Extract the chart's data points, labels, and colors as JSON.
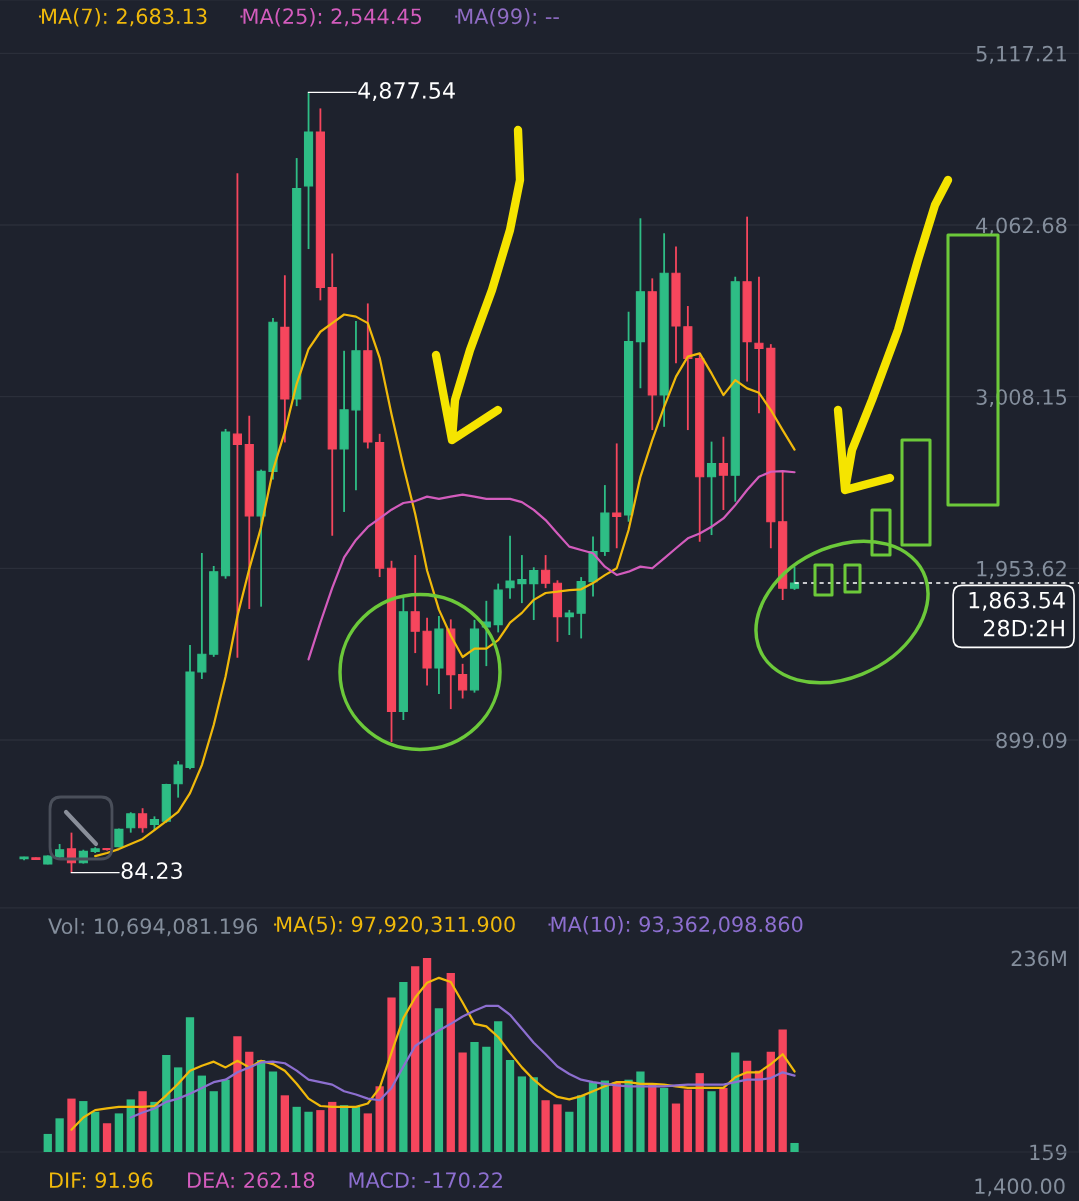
{
  "chart_data": [
    {
      "type": "candlestick",
      "categories": [
        null,
        null,
        null,
        null,
        null,
        null,
        null,
        null,
        null,
        null,
        null,
        null,
        null,
        null,
        null,
        null,
        null,
        null,
        null,
        null,
        null,
        null,
        null,
        null,
        null,
        null,
        null,
        null,
        null,
        null,
        null,
        null,
        null,
        null,
        null,
        null,
        null,
        null,
        null,
        null,
        null,
        null,
        null,
        null,
        null,
        null,
        null,
        null,
        null,
        null,
        null,
        null,
        null,
        null,
        null,
        null,
        null,
        null,
        null,
        null,
        null,
        null,
        null,
        null,
        null,
        null
      ],
      "ohlc": [
        [
          170,
          182,
          160,
          180
        ],
        [
          175,
          177,
          163,
          165
        ],
        [
          137,
          190,
          135,
          186
        ],
        [
          180,
          260,
          170,
          225
        ],
        [
          230,
          330,
          84.23,
          145
        ],
        [
          145,
          225,
          140,
          215
        ],
        [
          215,
          240,
          205,
          230
        ],
        [
          232,
          236,
          220,
          226
        ],
        [
          244,
          355,
          240,
          350
        ],
        [
          360,
          455,
          330,
          445
        ],
        [
          445,
          480,
          330,
          360
        ],
        [
          380,
          430,
          345,
          410
        ],
        [
          400,
          630,
          390,
          625
        ],
        [
          630,
          770,
          545,
          745
        ],
        [
          730,
          1483,
          720,
          1317
        ],
        [
          1317,
          2048,
          1274,
          1426
        ],
        [
          1426,
          1968,
          1410,
          1933
        ],
        [
          1908,
          2810,
          1890,
          2791
        ],
        [
          2778,
          4381,
          1404,
          2714
        ],
        [
          2714,
          2891,
          1704,
          2276
        ],
        [
          2276,
          2560,
          1718,
          2549
        ],
        [
          2549,
          3491,
          2500,
          3465
        ],
        [
          3434,
          3754,
          2727,
          2994
        ],
        [
          2994,
          4474,
          2950,
          4286
        ],
        [
          4303,
          4877.54,
          3915,
          4634
        ],
        [
          4634,
          4779,
          3600,
          3679
        ],
        [
          3679,
          3887,
          2154,
          2687
        ],
        [
          2687,
          3290,
          2300,
          2927
        ],
        [
          2927,
          3473,
          2434,
          3290
        ],
        [
          3290,
          3581,
          2690,
          2730
        ],
        [
          2727,
          2780,
          1900,
          1954
        ],
        [
          1954,
          2000,
          887,
          1074
        ],
        [
          1074,
          1780,
          1022,
          1687
        ],
        [
          1687,
          2035,
          1433,
          1567
        ],
        [
          1567,
          1650,
          1234,
          1341
        ],
        [
          1341,
          1661,
          1182,
          1580
        ],
        [
          1580,
          1640,
          1089,
          1301
        ],
        [
          1301,
          1367,
          1154,
          1207
        ],
        [
          1207,
          1637,
          1190,
          1580
        ],
        [
          1593,
          1754,
          1353,
          1624
        ],
        [
          1608,
          1860,
          1560,
          1820
        ],
        [
          1834,
          2154,
          1767,
          1876
        ],
        [
          1860,
          2035,
          1740,
          1885
        ],
        [
          1860,
          1960,
          1636,
          1940
        ],
        [
          1942,
          2035,
          1832,
          1862
        ],
        [
          1862,
          1880,
          1502,
          1657
        ],
        [
          1657,
          1698,
          1544,
          1679
        ],
        [
          1678,
          1900,
          1523,
          1872
        ],
        [
          1872,
          2149,
          1780,
          2057
        ],
        [
          2057,
          2465,
          2030,
          2293
        ],
        [
          2293,
          2721,
          2077,
          2272
        ],
        [
          2281,
          3530,
          2240,
          3346
        ],
        [
          3346,
          4104,
          3060,
          3653
        ],
        [
          3653,
          3735,
          2803,
          3019
        ],
        [
          3019,
          4012,
          2823,
          3766
        ],
        [
          3766,
          3930,
          3213,
          3442
        ],
        [
          3438,
          3565,
          2803,
          3243
        ],
        [
          3243,
          3274,
          2117,
          2516
        ],
        [
          2516,
          2732,
          2158,
          2598
        ],
        [
          2598,
          2762,
          2312,
          2526
        ],
        [
          2526,
          3745,
          2363,
          3714
        ],
        [
          3714,
          4114,
          3101,
          3346
        ],
        [
          3336,
          3745,
          2906,
          3305
        ],
        [
          3305,
          3331,
          2077,
          2240
        ],
        [
          2240,
          2547,
          1759,
          1831
        ],
        [
          1831,
          1964,
          1821,
          1863.54
        ]
      ],
      "colors": [
        "#2ebd85",
        "#f6465d",
        "#2ebd85",
        "#2ebd85",
        "#f6465d",
        "#2ebd85",
        "#2ebd85",
        "#f6465d",
        "#2ebd85",
        "#2ebd85",
        "#f6465d",
        "#2ebd85",
        "#2ebd85",
        "#2ebd85",
        "#2ebd85",
        "#2ebd85",
        "#2ebd85",
        "#2ebd85",
        "#f6465d",
        "#f6465d",
        "#2ebd85",
        "#2ebd85",
        "#f6465d",
        "#2ebd85",
        "#2ebd85",
        "#f6465d",
        "#f6465d",
        "#2ebd85",
        "#2ebd85",
        "#f6465d",
        "#f6465d",
        "#f6465d",
        "#2ebd85",
        "#f6465d",
        "#f6465d",
        "#2ebd85",
        "#f6465d",
        "#f6465d",
        "#2ebd85",
        "#2ebd85",
        "#2ebd85",
        "#2ebd85",
        "#2ebd85",
        "#2ebd85",
        "#f6465d",
        "#f6465d",
        "#2ebd85",
        "#2ebd85",
        "#2ebd85",
        "#2ebd85",
        "#f6465d",
        "#2ebd85",
        "#2ebd85",
        "#f6465d",
        "#2ebd85",
        "#f6465d",
        "#f6465d",
        "#f6465d",
        "#2ebd85",
        "#f6465d",
        "#2ebd85",
        "#f6465d",
        "#f6465d",
        "#f6465d",
        "#f6465d",
        "#2ebd85"
      ],
      "series": [
        {
          "name": "MA(7): 2,683.13",
          "type": "line",
          "color": "#f0b90b",
          "values": [
            null,
            null,
            null,
            null,
            null,
            null,
            186,
            205,
            229,
            260,
            291,
            346,
            401,
            457,
            573,
            745,
            991,
            1289,
            1661,
            1950,
            2207,
            2556,
            2793,
            3087,
            3301,
            3407,
            3460,
            3513,
            3500,
            3460,
            3247,
            2900,
            2582,
            2287,
            1940,
            1700,
            1540,
            1409,
            1460,
            1460,
            1513,
            1620,
            1680,
            1760,
            1802,
            1810,
            1820,
            1825,
            1863,
            1912,
            1954,
            2189,
            2516,
            2741,
            2946,
            3131,
            3254,
            3274,
            3151,
            3018,
            3110,
            3059,
            3032,
            2926,
            2803,
            2683
          ]
        },
        {
          "name": "MA(25): 2,544.45",
          "type": "line",
          "color": "#d35cbd",
          "values": [
            null,
            null,
            null,
            null,
            null,
            null,
            null,
            null,
            null,
            null,
            null,
            null,
            null,
            null,
            null,
            null,
            null,
            null,
            null,
            null,
            null,
            null,
            null,
            null,
            1394,
            1621,
            1834,
            2021,
            2128,
            2208,
            2261,
            2314,
            2355,
            2367,
            2394,
            2380,
            2394,
            2407,
            2394,
            2380,
            2380,
            2380,
            2360,
            2313,
            2250,
            2168,
            2087,
            2066,
            2046,
            1964,
            1913,
            1933,
            1964,
            1954,
            2015,
            2077,
            2138,
            2168,
            2209,
            2260,
            2342,
            2435,
            2516,
            2547,
            2551,
            2544
          ]
        },
        {
          "name": "MA(99): --",
          "type": "line",
          "color": "#8f6cc4",
          "values": [
            null,
            null,
            null,
            null,
            null,
            null,
            null,
            null,
            null,
            null,
            null,
            null,
            null,
            null,
            null,
            null,
            null,
            null,
            null,
            null,
            null,
            null,
            null,
            null,
            null,
            null,
            null,
            null,
            null,
            null,
            null,
            null,
            null,
            null,
            null,
            null,
            null,
            null,
            null,
            null,
            null,
            null,
            null,
            null,
            null,
            null,
            null,
            null,
            null,
            null,
            null,
            null,
            null,
            null,
            null,
            null,
            null,
            null,
            null,
            null,
            null,
            null,
            null,
            null,
            null,
            null
          ]
        }
      ],
      "ylim": [
        -133,
        5445
      ],
      "yticks": [
        {
          "value": 899.09,
          "label": "899.09"
        },
        {
          "value": 1953.62,
          "label": "1,953.62"
        },
        {
          "value": 3008.15,
          "label": "3,008.15"
        },
        {
          "value": 4062.68,
          "label": "4,062.68"
        },
        {
          "value": 5117.21,
          "label": "5,117.21"
        }
      ],
      "ref_lines": [
        {
          "axis": "y",
          "value": 1863.54,
          "label": "1,863.54",
          "color": "#ffffff",
          "line_style": "dashed"
        }
      ],
      "annotations": [
        "4,877.54",
        "84.23",
        "28D:2H"
      ],
      "grid": "y",
      "legend": "top left",
      "tick_labels": "y"
    },
    {
      "type": "bar",
      "categories": [
        null,
        null,
        null,
        null,
        null,
        null,
        null,
        null,
        null,
        null,
        null,
        null,
        null,
        null,
        null,
        null,
        null,
        null,
        null,
        null,
        null,
        null,
        null,
        null,
        null,
        null,
        null,
        null,
        null,
        null,
        null,
        null,
        null,
        null,
        null,
        null,
        null,
        null,
        null,
        null,
        null,
        null,
        null,
        null,
        null,
        null,
        null,
        null,
        null,
        null,
        null,
        null,
        null,
        null,
        null,
        null,
        null,
        null,
        null,
        null,
        null,
        null,
        null,
        null,
        null,
        null
      ],
      "values": [
        null,
        null,
        22000000,
        41000000,
        65000000,
        62000000,
        49000000,
        35000000,
        47000000,
        64000000,
        74000000,
        61000000,
        118000000,
        103000000,
        164000000,
        93000000,
        74000000,
        88000000,
        141000000,
        122000000,
        112000000,
        98000000,
        69000000,
        55000000,
        49000000,
        51000000,
        61000000,
        57000000,
        55000000,
        47000000,
        80000000,
        188000000,
        207000000,
        226000000,
        236000000,
        175000000,
        218000000,
        121000000,
        134000000,
        128000000,
        159000000,
        112000000,
        92000000,
        91000000,
        63000000,
        58000000,
        49000000,
        69000000,
        85000000,
        87000000,
        85000000,
        88000000,
        98000000,
        83000000,
        78000000,
        59000000,
        76000000,
        96000000,
        74000000,
        78000000,
        121000000,
        111000000,
        99000000,
        122000000,
        149000000,
        11000000
      ],
      "colors": [
        "#2ebd85",
        "#f6465d",
        "#2ebd85",
        "#2ebd85",
        "#f6465d",
        "#2ebd85",
        "#2ebd85",
        "#f6465d",
        "#2ebd85",
        "#2ebd85",
        "#f6465d",
        "#2ebd85",
        "#2ebd85",
        "#2ebd85",
        "#2ebd85",
        "#2ebd85",
        "#2ebd85",
        "#2ebd85",
        "#f6465d",
        "#f6465d",
        "#2ebd85",
        "#2ebd85",
        "#f6465d",
        "#2ebd85",
        "#2ebd85",
        "#f6465d",
        "#f6465d",
        "#2ebd85",
        "#2ebd85",
        "#f6465d",
        "#f6465d",
        "#f6465d",
        "#2ebd85",
        "#f6465d",
        "#f6465d",
        "#2ebd85",
        "#f6465d",
        "#f6465d",
        "#2ebd85",
        "#2ebd85",
        "#2ebd85",
        "#2ebd85",
        "#2ebd85",
        "#2ebd85",
        "#f6465d",
        "#f6465d",
        "#2ebd85",
        "#2ebd85",
        "#2ebd85",
        "#2ebd85",
        "#f6465d",
        "#2ebd85",
        "#2ebd85",
        "#f6465d",
        "#2ebd85",
        "#f6465d",
        "#f6465d",
        "#f6465d",
        "#2ebd85",
        "#f6465d",
        "#2ebd85",
        "#f6465d",
        "#f6465d",
        "#f6465d",
        "#f6465d",
        "#2ebd85"
      ],
      "series": [
        {
          "name": "MA(5): 97,920,311.900",
          "type": "line",
          "color": "#f0b90b",
          "values": [
            null,
            null,
            null,
            null,
            27000000,
            42000000,
            51000000,
            53000000,
            55000000,
            55000000,
            55000000,
            56000000,
            69000000,
            83000000,
            99000000,
            105000000,
            110000000,
            103000000,
            111000000,
            103000000,
            111000000,
            107000000,
            99000000,
            83000000,
            65000000,
            56000000,
            55000000,
            55000000,
            55000000,
            59000000,
            78000000,
            121000000,
            163000000,
            188000000,
            206000000,
            212000000,
            207000000,
            182000000,
            156000000,
            153000000,
            140000000,
            121000000,
            103000000,
            88000000,
            76000000,
            67000000,
            64000000,
            68000000,
            74000000,
            80000000,
            85000000,
            85000000,
            83000000,
            83000000,
            82000000,
            80000000,
            78000000,
            78000000,
            78000000,
            78000000,
            91000000,
            97000000,
            97000000,
            107000000,
            119000000,
            98000000
          ]
        },
        {
          "name": "MA(10): 93,362,098.860",
          "type": "line",
          "color": "#8d6fd0",
          "values": [
            null,
            null,
            null,
            null,
            null,
            null,
            null,
            null,
            null,
            42000000,
            48000000,
            53000000,
            61000000,
            65000000,
            71000000,
            78000000,
            85000000,
            88000000,
            97000000,
            103000000,
            109000000,
            110000000,
            108000000,
            99000000,
            88000000,
            85000000,
            82000000,
            74000000,
            70000000,
            65000000,
            63000000,
            78000000,
            104000000,
            129000000,
            139000000,
            148000000,
            156000000,
            165000000,
            172000000,
            178000000,
            178000000,
            167000000,
            150000000,
            133000000,
            119000000,
            104000000,
            95000000,
            88000000,
            85000000,
            83000000,
            81000000,
            80000000,
            80000000,
            80000000,
            80000000,
            81000000,
            82000000,
            82000000,
            82000000,
            82000000,
            85000000,
            88000000,
            88000000,
            90000000,
            97000000,
            93000000
          ]
        }
      ],
      "ylim": [
        0,
        297000000
      ],
      "yticks": [
        159,
        {
          "value": 236000000,
          "label": "236M"
        }
      ],
      "annotations": [
        "Vol: 10,694,081.196",
        "DIF: 91.96",
        "DEA: 262.18",
        "MACD: -170.22",
        "1,400.00"
      ],
      "legend": "top",
      "tick_labels": "y"
    }
  ]
}
